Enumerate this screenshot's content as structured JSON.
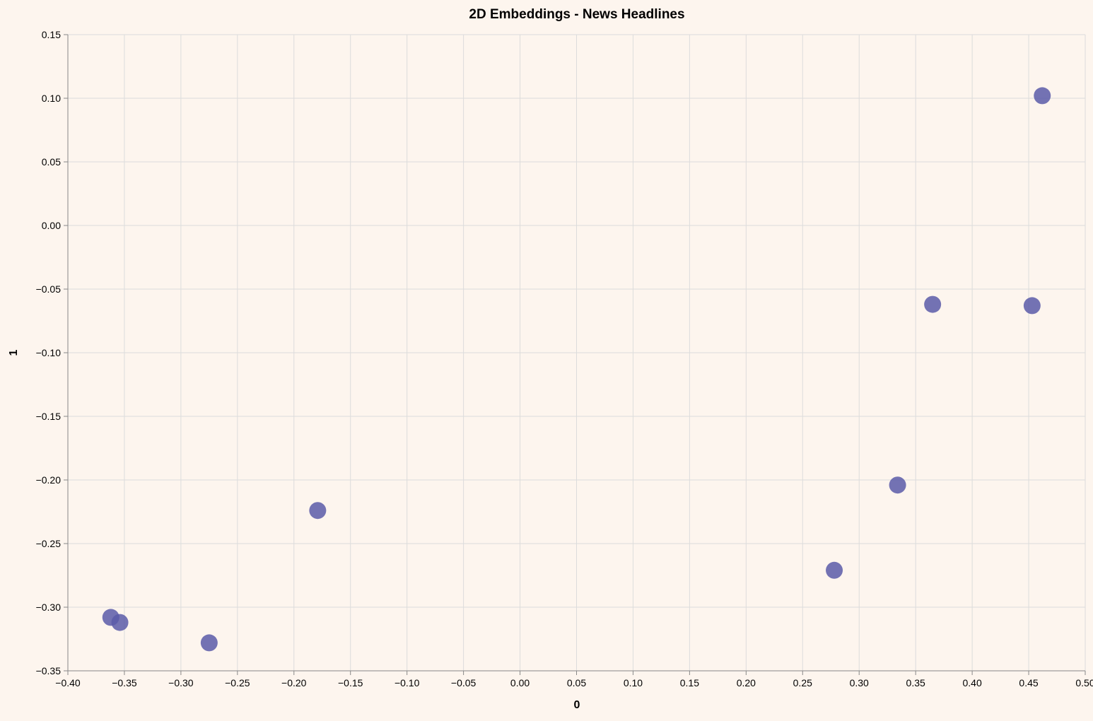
{
  "chart_data": {
    "type": "scatter",
    "title": "2D Embeddings - News Headlines",
    "xlabel": "0",
    "ylabel": "1",
    "xlim": [
      -0.4,
      0.5
    ],
    "ylim": [
      -0.35,
      0.15
    ],
    "grid": true,
    "x_ticks": [
      "−0.40",
      "−0.35",
      "−0.30",
      "−0.25",
      "−0.20",
      "−0.15",
      "−0.10",
      "−0.05",
      "0.00",
      "0.05",
      "0.10",
      "0.15",
      "0.20",
      "0.25",
      "0.30",
      "0.35",
      "0.40",
      "0.45",
      "0.50"
    ],
    "y_ticks": [
      "−0.35",
      "−0.30",
      "−0.25",
      "−0.20",
      "−0.15",
      "−0.10",
      "−0.05",
      "0.00",
      "0.05",
      "0.10",
      "0.15"
    ],
    "point_color": "#5b5aa8",
    "points": [
      {
        "x": 0.462,
        "y": 0.102
      },
      {
        "x": 0.365,
        "y": -0.062
      },
      {
        "x": 0.453,
        "y": -0.063
      },
      {
        "x": 0.334,
        "y": -0.204
      },
      {
        "x": 0.278,
        "y": -0.271
      },
      {
        "x": -0.179,
        "y": -0.224
      },
      {
        "x": -0.362,
        "y": -0.308
      },
      {
        "x": -0.354,
        "y": -0.312
      },
      {
        "x": -0.275,
        "y": -0.328
      }
    ]
  }
}
